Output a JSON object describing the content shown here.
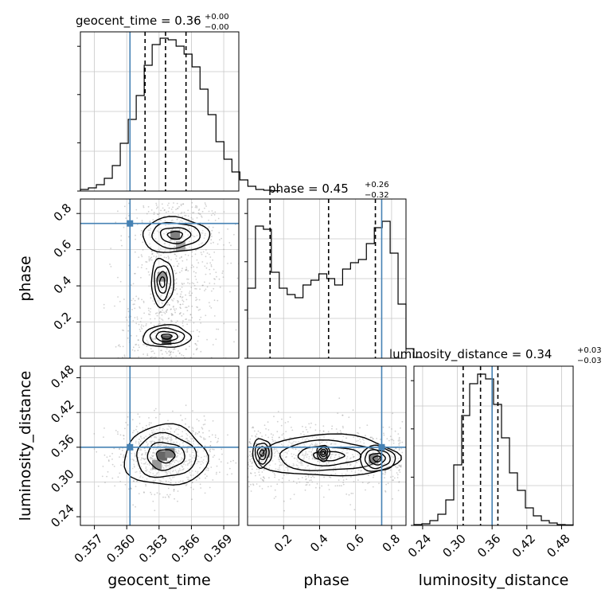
{
  "truth_color": "#4682b4",
  "chart_data": {
    "type": "corner",
    "parameters": [
      "geocent_time",
      "phase",
      "luminosity_distance"
    ],
    "truths": {
      "geocent_time": 0.3603,
      "phase": 0.745,
      "luminosity_distance": 0.36
    },
    "titles": {
      "geocent_time": {
        "main": "geocent_time = 0.36",
        "sup": "+0.00",
        "sub": "−0.00"
      },
      "phase": {
        "main": "phase = 0.45",
        "sup": "+0.26",
        "sub": "−0.32"
      },
      "luminosity_distance": {
        "main": "luminosity_distance = 0.34",
        "sup": "+0.03",
        "sub": "−0.03"
      }
    },
    "axis_labels": {
      "geocent_time": "geocent_time",
      "phase": "phase",
      "luminosity_distance": "luminosity_distance"
    },
    "ticks": {
      "geocent_time": [
        "0.357",
        "0.360",
        "0.363",
        "0.366",
        "0.369"
      ],
      "phase": [
        "0.2",
        "0.4",
        "0.6",
        "0.8"
      ],
      "luminosity_distance": [
        "0.24",
        "0.30",
        "0.36",
        "0.42",
        "0.48"
      ]
    },
    "ranges": {
      "geocent_time": [
        0.3557,
        0.3704
      ],
      "phase": [
        0.0,
        0.88
      ],
      "luminosity_distance": [
        0.225,
        0.5
      ]
    },
    "quantiles": {
      "geocent_time": [
        0.3617,
        0.3636,
        0.3655
      ],
      "phase": [
        0.125,
        0.45,
        0.71
      ],
      "luminosity_distance": [
        0.31,
        0.34,
        0.37
      ]
    },
    "histograms": {
      "geocent_time": {
        "edges_start": 0.3557,
        "bin_width": 0.00074,
        "counts": [
          0.01,
          0.02,
          0.04,
          0.08,
          0.16,
          0.3,
          0.45,
          0.6,
          0.79,
          0.92,
          0.96,
          0.95,
          0.91,
          0.86,
          0.78,
          0.64,
          0.48,
          0.31,
          0.2,
          0.12,
          0.07,
          0.03,
          0.01,
          0.005,
          0.002
        ]
      },
      "phase": {
        "edges_start": 0.0,
        "bin_width": 0.044,
        "counts": [
          0.44,
          0.83,
          0.81,
          0.54,
          0.44,
          0.4,
          0.38,
          0.46,
          0.49,
          0.53,
          0.5,
          0.46,
          0.56,
          0.6,
          0.62,
          0.72,
          0.82,
          0.86,
          0.66,
          0.34,
          0.06,
          0.005
        ]
      },
      "luminosity_distance": {
        "edges_start": 0.225,
        "bin_width": 0.01375,
        "counts": [
          0.005,
          0.01,
          0.03,
          0.07,
          0.16,
          0.38,
          0.69,
          0.89,
          0.95,
          0.92,
          0.76,
          0.55,
          0.33,
          0.22,
          0.11,
          0.06,
          0.03,
          0.015,
          0.005,
          0.003
        ]
      }
    },
    "contours_2d": {
      "phase_vs_geocent_time": {
        "x": "geocent_time",
        "y": "phase"
      },
      "luminosity_distance_vs_geocent_time": {
        "x": "geocent_time",
        "y": "luminosity_distance"
      },
      "luminosity_distance_vs_phase": {
        "x": "phase",
        "y": "luminosity_distance"
      }
    }
  }
}
